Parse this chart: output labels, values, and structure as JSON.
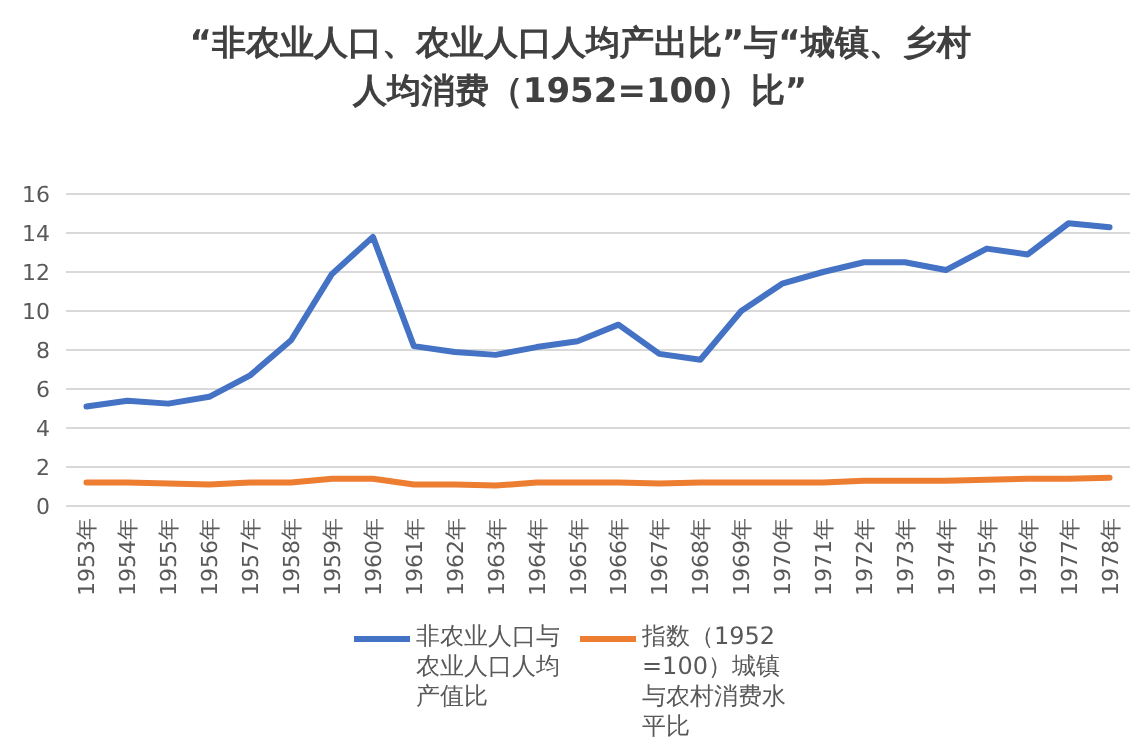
{
  "chart_data": {
    "type": "line",
    "title": "“非农业人口、农业人口人均产出比”与“城镇、乡村人均消费（1952=100）比”",
    "categories": [
      "1953年",
      "1954年",
      "1955年",
      "1956年",
      "1957年",
      "1958年",
      "1959年",
      "1960年",
      "1961年",
      "1962年",
      "1963年",
      "1964年",
      "1965年",
      "1966年",
      "1967年",
      "1968年",
      "1969年",
      "1970年",
      "1971年",
      "1972年",
      "1973年",
      "1974年",
      "1975年",
      "1976年",
      "1977年",
      "1978年"
    ],
    "series": [
      {
        "name": "非农业人口与农业人口人均产值比",
        "color": "#4472c4",
        "values": [
          5.1,
          5.4,
          5.25,
          5.6,
          6.7,
          8.5,
          11.9,
          13.8,
          8.2,
          7.9,
          7.75,
          8.15,
          8.45,
          9.3,
          7.8,
          7.5,
          10.0,
          11.4,
          12.0,
          12.5,
          12.5,
          12.1,
          13.2,
          12.9,
          14.5,
          14.3
        ]
      },
      {
        "name": "指数（1952=100）城镇与农村消费水平比",
        "color": "#ed7d31",
        "values": [
          1.2,
          1.2,
          1.15,
          1.1,
          1.2,
          1.2,
          1.4,
          1.4,
          1.1,
          1.1,
          1.05,
          1.2,
          1.2,
          1.2,
          1.15,
          1.2,
          1.2,
          1.2,
          1.2,
          1.3,
          1.3,
          1.3,
          1.35,
          1.4,
          1.4,
          1.45
        ]
      }
    ],
    "ylim": [
      0,
      16
    ],
    "yticks": [
      0,
      2,
      4,
      6,
      8,
      10,
      12,
      14,
      16
    ],
    "grid": "y",
    "legend": "bottom",
    "marker": "none",
    "line_style": "solid"
  }
}
